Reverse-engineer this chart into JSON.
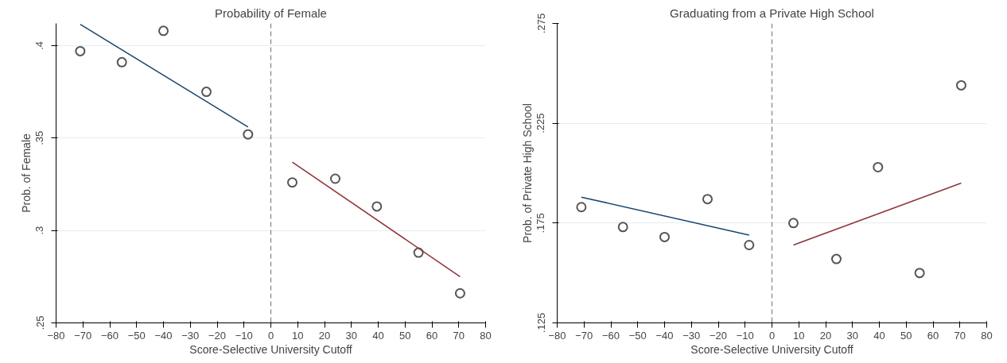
{
  "chart_data": [
    {
      "type": "scatter",
      "title": "Probability of Female",
      "xlabel": "Score-Selective University Cutoff",
      "ylabel": "Prob. of Female",
      "xlim": [
        -80,
        80
      ],
      "xticks": [
        -80,
        -70,
        -60,
        -50,
        -40,
        -30,
        -20,
        -10,
        0,
        10,
        20,
        30,
        40,
        50,
        60,
        70,
        80
      ],
      "ylim": [
        0.25,
        0.412
      ],
      "yticks": [
        {
          "value": 0.25,
          "label": ".25"
        },
        {
          "value": 0.3,
          "label": ".3"
        },
        {
          "value": 0.35,
          "label": ".35"
        },
        {
          "value": 0.4,
          "label": ".4"
        }
      ],
      "grid": "y",
      "ref_lines": [
        {
          "axis": "x",
          "value": 0,
          "color": "#808080",
          "line_style": "dashed"
        }
      ],
      "series": [
        {
          "marker": "circle",
          "color": "#555555",
          "x": [
            -71,
            -55.5,
            -40,
            -24,
            -8.5,
            8,
            24,
            39.5,
            55,
            70.5
          ],
          "values": [
            0.397,
            0.391,
            0.408,
            0.375,
            0.352,
            0.326,
            0.328,
            0.313,
            0.288,
            0.266
          ]
        },
        {
          "type": "line",
          "color": "#1a476f",
          "x": [
            -71,
            -8.5
          ],
          "values": [
            0.4115,
            0.356
          ]
        },
        {
          "type": "line",
          "color": "#90353b",
          "x": [
            8,
            70.5
          ],
          "values": [
            0.337,
            0.275
          ]
        }
      ]
    },
    {
      "type": "scatter",
      "title": "Graduating from a Private High School",
      "xlabel": "Score-Selective University Cutoff",
      "ylabel": "Prob. of Private High School",
      "xlim": [
        -80,
        80
      ],
      "xticks": [
        -80,
        -70,
        -60,
        -50,
        -40,
        -30,
        -20,
        -10,
        0,
        10,
        20,
        30,
        40,
        50,
        60,
        70,
        80
      ],
      "ylim": [
        0.125,
        0.275
      ],
      "yticks": [
        {
          "value": 0.125,
          "label": ".125"
        },
        {
          "value": 0.175,
          "label": ".175"
        },
        {
          "value": 0.225,
          "label": ".225"
        },
        {
          "value": 0.275,
          "label": ".275"
        }
      ],
      "grid": "y",
      "ref_lines": [
        {
          "axis": "x",
          "value": 0,
          "color": "#808080",
          "line_style": "dashed"
        }
      ],
      "series": [
        {
          "marker": "circle",
          "color": "#555555",
          "x": [
            -71,
            -55.5,
            -40,
            -24,
            -8.5,
            8,
            24,
            39.5,
            55,
            70.5
          ],
          "values": [
            0.183,
            0.173,
            0.168,
            0.187,
            0.164,
            0.175,
            0.157,
            0.203,
            0.15,
            0.244
          ]
        },
        {
          "type": "line",
          "color": "#1a476f",
          "x": [
            -71,
            -8.5
          ],
          "values": [
            0.188,
            0.169
          ]
        },
        {
          "type": "line",
          "color": "#90353b",
          "x": [
            8,
            70.5
          ],
          "values": [
            0.164,
            0.195
          ]
        }
      ]
    }
  ]
}
